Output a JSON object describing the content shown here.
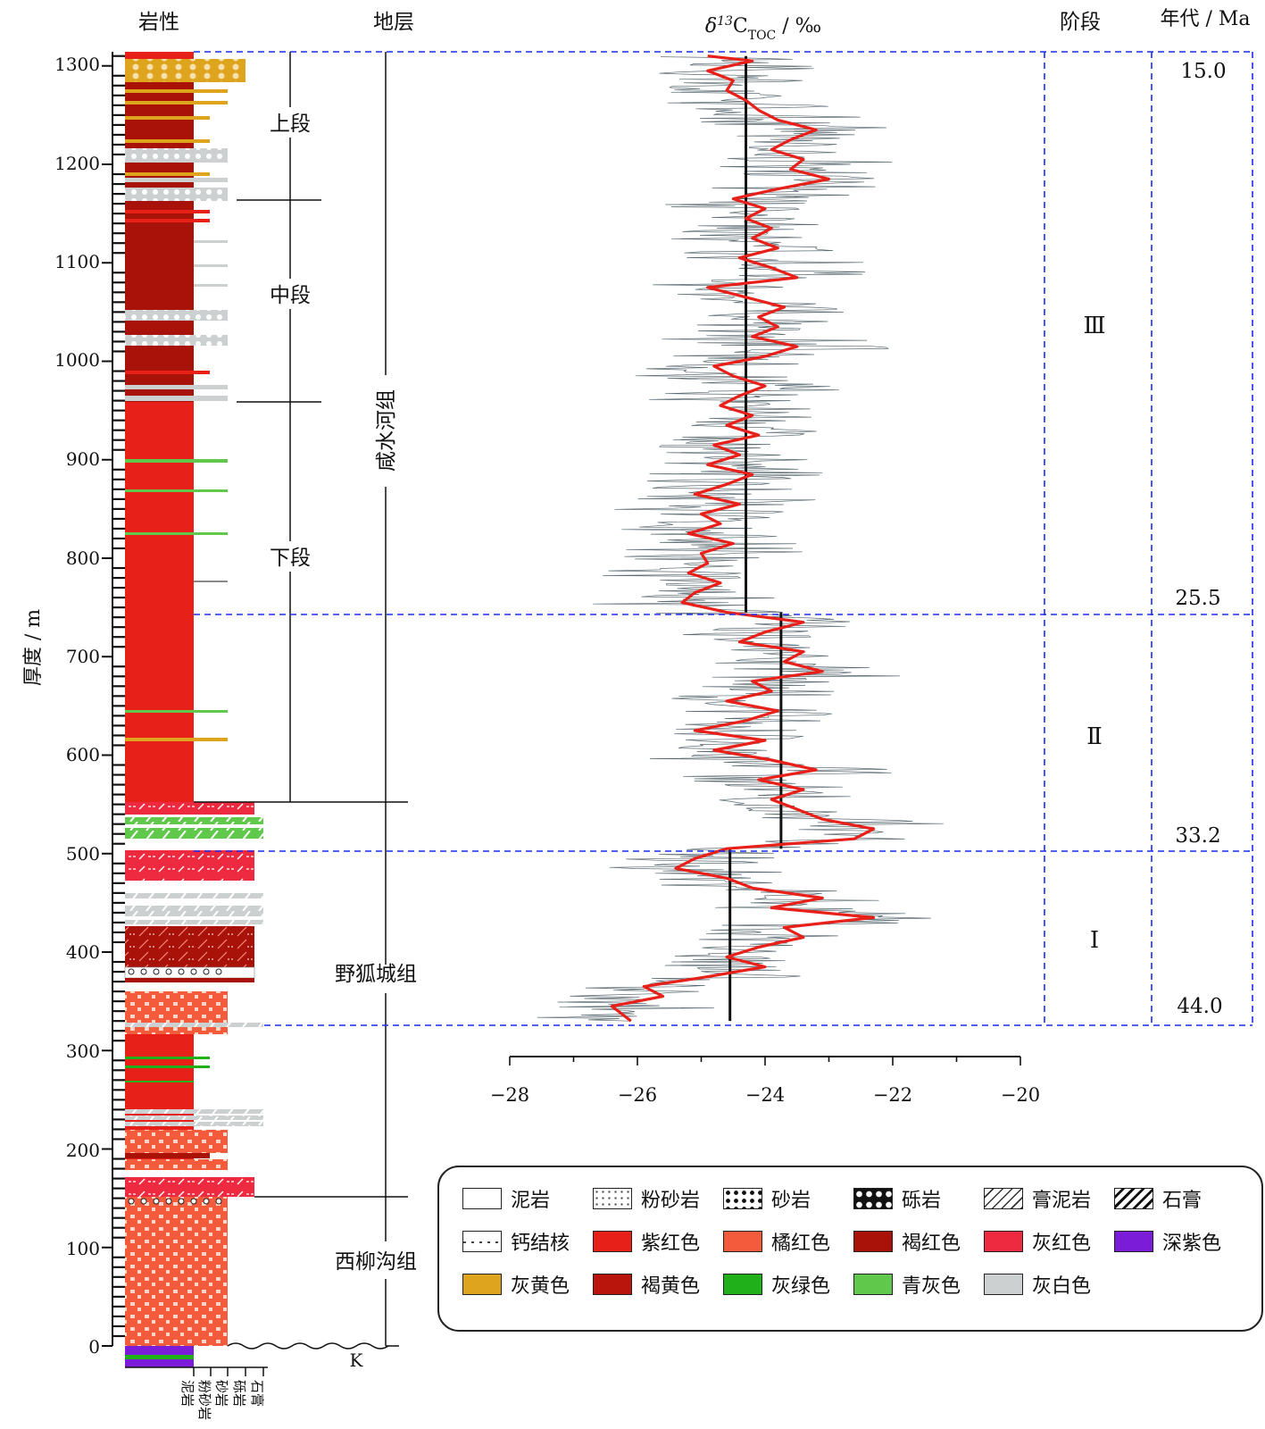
{
  "chart_data": {
    "type": "line",
    "title": "δ13C_TOC / ‰",
    "x_axis": {
      "label": "",
      "range": [
        -28,
        -20
      ],
      "ticks": [
        "−28",
        "−26",
        "−24",
        "−22",
        "−20"
      ]
    },
    "y_axis": {
      "label": "厚度 / m",
      "range": [
        0,
        1310
      ],
      "ticks": [
        "0",
        "100",
        "200",
        "300",
        "400",
        "500",
        "600",
        "700",
        "800",
        "900",
        "1000",
        "1100",
        "1200",
        "1300"
      ]
    },
    "column_headers": {
      "lithology": "岩性",
      "strata": "地层",
      "isotope": "δ13C_TOC / ‰",
      "stage": "阶段",
      "age": "年代 / Ma"
    },
    "lith_axis_labels": [
      "泥岩",
      "粉砂岩",
      "砂岩",
      "砾岩",
      "石膏"
    ],
    "base_label": "K",
    "formations": [
      {
        "name": "咸水河组",
        "from": 550,
        "to": 1310
      },
      {
        "name": "野狐城组",
        "from": 150,
        "to": 550
      },
      {
        "name": "西柳沟组",
        "from": 0,
        "to": 150
      }
    ],
    "members": [
      {
        "name": "上段",
        "from": 1160,
        "to": 1310
      },
      {
        "name": "中段",
        "from": 955,
        "to": 1160
      },
      {
        "name": "下段",
        "from": 550,
        "to": 955
      }
    ],
    "stages": [
      {
        "name": "Ⅲ",
        "from": 745,
        "to": 1310,
        "mean": -24.3
      },
      {
        "name": "Ⅱ",
        "from": 505,
        "to": 745,
        "mean": -23.75
      },
      {
        "name": "Ⅰ",
        "from": 330,
        "to": 505,
        "mean": -24.55
      }
    ],
    "ages": [
      {
        "label": "15.0",
        "depth": 1310
      },
      {
        "label": "25.5",
        "depth": 745
      },
      {
        "label": "33.2",
        "depth": 505
      },
      {
        "label": "44.0",
        "depth": 330
      }
    ],
    "smoothed_series": {
      "name": "smoothed δ13C_TOC",
      "color": "#e8201a",
      "points": [
        [
          330,
          -26.1
        ],
        [
          345,
          -26.4
        ],
        [
          355,
          -25.6
        ],
        [
          365,
          -25.9
        ],
        [
          375,
          -24.9
        ],
        [
          385,
          -24.0
        ],
        [
          395,
          -24.6
        ],
        [
          405,
          -24.1
        ],
        [
          415,
          -23.4
        ],
        [
          425,
          -23.7
        ],
        [
          435,
          -22.3
        ],
        [
          445,
          -23.9
        ],
        [
          455,
          -23.1
        ],
        [
          465,
          -24.2
        ],
        [
          475,
          -24.6
        ],
        [
          485,
          -25.4
        ],
        [
          495,
          -25.1
        ],
        [
          505,
          -24.6
        ],
        [
          515,
          -22.6
        ],
        [
          525,
          -22.3
        ],
        [
          535,
          -23.1
        ],
        [
          545,
          -23.5
        ],
        [
          555,
          -23.9
        ],
        [
          565,
          -23.4
        ],
        [
          575,
          -24.1
        ],
        [
          585,
          -23.2
        ],
        [
          595,
          -23.9
        ],
        [
          605,
          -24.8
        ],
        [
          615,
          -24.0
        ],
        [
          625,
          -25.1
        ],
        [
          635,
          -24.3
        ],
        [
          645,
          -23.8
        ],
        [
          655,
          -24.6
        ],
        [
          665,
          -23.9
        ],
        [
          675,
          -24.2
        ],
        [
          685,
          -23.1
        ],
        [
          695,
          -23.7
        ],
        [
          705,
          -23.4
        ],
        [
          715,
          -24.4
        ],
        [
          725,
          -24.0
        ],
        [
          735,
          -23.4
        ],
        [
          745,
          -24.6
        ],
        [
          755,
          -25.3
        ],
        [
          765,
          -25.1
        ],
        [
          775,
          -24.7
        ],
        [
          785,
          -25.2
        ],
        [
          795,
          -24.9
        ],
        [
          805,
          -25.0
        ],
        [
          815,
          -24.5
        ],
        [
          825,
          -25.2
        ],
        [
          835,
          -24.7
        ],
        [
          845,
          -25.0
        ],
        [
          855,
          -24.4
        ],
        [
          865,
          -25.1
        ],
        [
          875,
          -24.6
        ],
        [
          885,
          -24.2
        ],
        [
          895,
          -24.9
        ],
        [
          905,
          -24.4
        ],
        [
          915,
          -24.8
        ],
        [
          925,
          -24.1
        ],
        [
          935,
          -24.6
        ],
        [
          945,
          -24.2
        ],
        [
          955,
          -24.7
        ],
        [
          965,
          -24.4
        ],
        [
          975,
          -24.0
        ],
        [
          985,
          -24.5
        ],
        [
          995,
          -24.8
        ],
        [
          1005,
          -24.0
        ],
        [
          1015,
          -23.5
        ],
        [
          1025,
          -24.2
        ],
        [
          1035,
          -23.8
        ],
        [
          1045,
          -24.1
        ],
        [
          1055,
          -23.7
        ],
        [
          1065,
          -24.3
        ],
        [
          1075,
          -24.9
        ],
        [
          1085,
          -23.5
        ],
        [
          1095,
          -23.9
        ],
        [
          1105,
          -24.4
        ],
        [
          1115,
          -23.8
        ],
        [
          1125,
          -24.2
        ],
        [
          1135,
          -23.9
        ],
        [
          1145,
          -24.3
        ],
        [
          1155,
          -24.0
        ],
        [
          1165,
          -24.5
        ],
        [
          1175,
          -23.8
        ],
        [
          1185,
          -23.0
        ],
        [
          1195,
          -23.6
        ],
        [
          1205,
          -23.4
        ],
        [
          1215,
          -23.9
        ],
        [
          1225,
          -23.6
        ],
        [
          1235,
          -23.2
        ],
        [
          1245,
          -23.8
        ],
        [
          1255,
          -24.1
        ],
        [
          1265,
          -24.3
        ],
        [
          1275,
          -24.6
        ],
        [
          1285,
          -24.5
        ],
        [
          1295,
          -24.9
        ],
        [
          1305,
          -24.2
        ],
        [
          1310,
          -24.9
        ]
      ]
    },
    "legend": [
      {
        "label": "泥岩",
        "pattern": "mudstone"
      },
      {
        "label": "粉砂岩",
        "pattern": "siltstone"
      },
      {
        "label": "砂岩",
        "pattern": "sandstone"
      },
      {
        "label": "砾岩",
        "pattern": "conglomerate"
      },
      {
        "label": "膏泥岩",
        "pattern": "gypsum-mudstone"
      },
      {
        "label": "石膏",
        "pattern": "gypsum"
      },
      {
        "label": "钙结核",
        "pattern": "calcareous-nodule"
      },
      {
        "label": "紫红色",
        "color": "#e8201a"
      },
      {
        "label": "橘红色",
        "color": "#f45a3c"
      },
      {
        "label": "褐红色",
        "color": "#a81208"
      },
      {
        "label": "灰红色",
        "color": "#ee2a40"
      },
      {
        "label": "深紫色",
        "color": "#7a1cd8"
      },
      {
        "label": "灰黄色",
        "color": "#dea41e"
      },
      {
        "label": "褐黄色",
        "color": "#b9150c"
      },
      {
        "label": "灰绿色",
        "color": "#1fb01a"
      },
      {
        "label": "青灰色",
        "color": "#60c84a"
      },
      {
        "label": "灰白色",
        "color": "#cdd0d0"
      }
    ]
  }
}
